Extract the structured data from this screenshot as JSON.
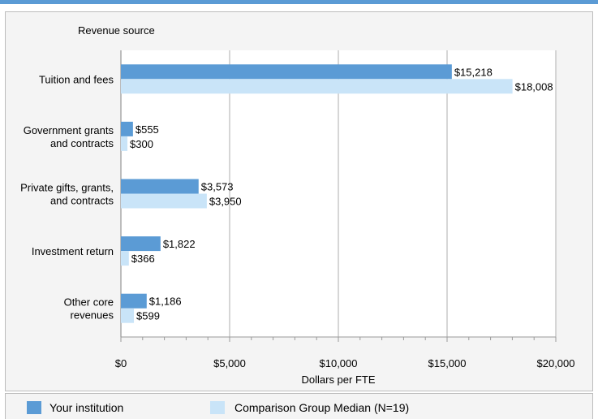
{
  "chart_data": {
    "type": "bar",
    "orientation": "horizontal",
    "title": "Revenue source",
    "xlabel": "Dollars per FTE",
    "ylabel": "",
    "xlim": [
      0,
      20000
    ],
    "xticks": [
      0,
      5000,
      10000,
      15000,
      20000
    ],
    "xtick_labels": [
      "$0",
      "$5,000",
      "$10,000",
      "$15,000",
      "$20,000"
    ],
    "grid": true,
    "categories": [
      [
        "Tuition and fees"
      ],
      [
        "Government grants",
        "and contracts"
      ],
      [
        "Private gifts, grants,",
        "and contracts"
      ],
      [
        "Investment return"
      ],
      [
        "Other core",
        "revenues"
      ]
    ],
    "series": [
      {
        "name": "Your institution",
        "color": "#5b9bd5",
        "values": [
          15218,
          555,
          3573,
          1822,
          1186
        ],
        "labels": [
          "$15,218",
          "$555",
          "$3,573",
          "$1,822",
          "$1,186"
        ]
      },
      {
        "name": "Comparison Group Median (N=19)",
        "color": "#c9e4f8",
        "values": [
          18008,
          300,
          3950,
          366,
          599
        ],
        "labels": [
          "$18,008",
          "$300",
          "$3,950",
          "$366",
          "$599"
        ]
      }
    ],
    "legend_position": "bottom"
  },
  "legend": {
    "item1": "Your institution",
    "item2": "Comparison Group Median (N=19)"
  }
}
